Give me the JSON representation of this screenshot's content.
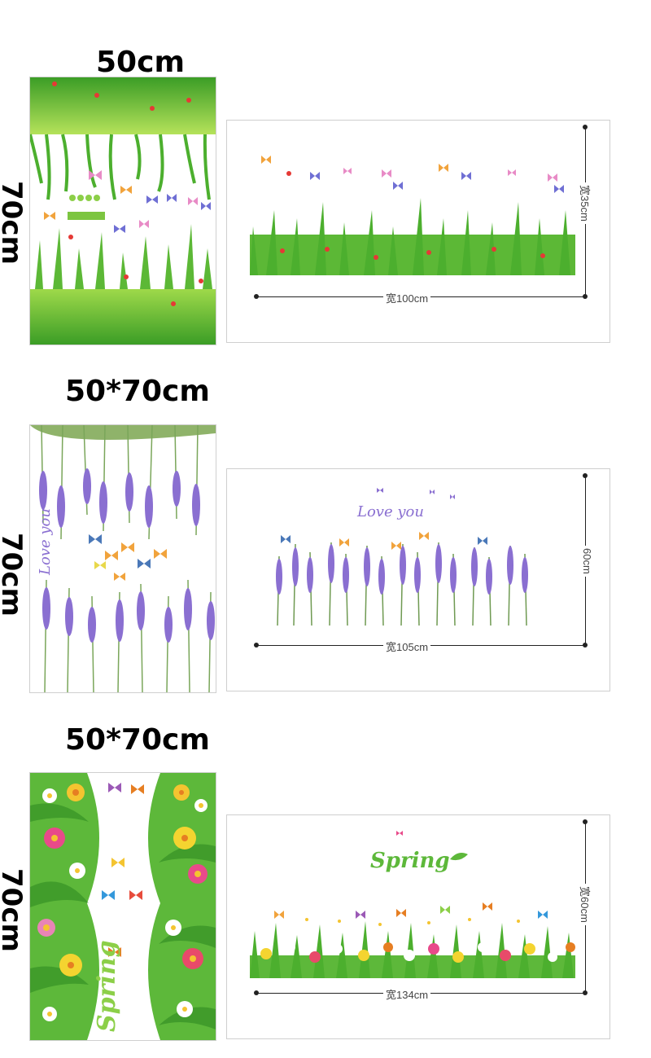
{
  "products": [
    {
      "sheet_width_label": "50cm",
      "sheet_height_label": "70cm",
      "preview_width_label": "宽100cm",
      "preview_height_label": "宽35cm",
      "theme": "grass-butterflies"
    },
    {
      "sheet_width_label": "50*70cm",
      "sheet_height_label": "70cm",
      "preview_width_label": "宽105cm",
      "preview_height_label": "60cm",
      "preview_text": "Love you",
      "sheet_text": "Love you",
      "theme": "lavender"
    },
    {
      "sheet_width_label": "50*70cm",
      "sheet_height_label": "70cm",
      "preview_width_label": "宽134cm",
      "preview_height_label": "宽60cm",
      "preview_text": "Spring",
      "sheet_text": "Spring",
      "theme": "spring-flowers"
    }
  ],
  "colors": {
    "grass": "#4caf2e",
    "grass_light": "#a6d94a",
    "lavender": "#8a6fd1",
    "spring_green": "#5db83a"
  }
}
